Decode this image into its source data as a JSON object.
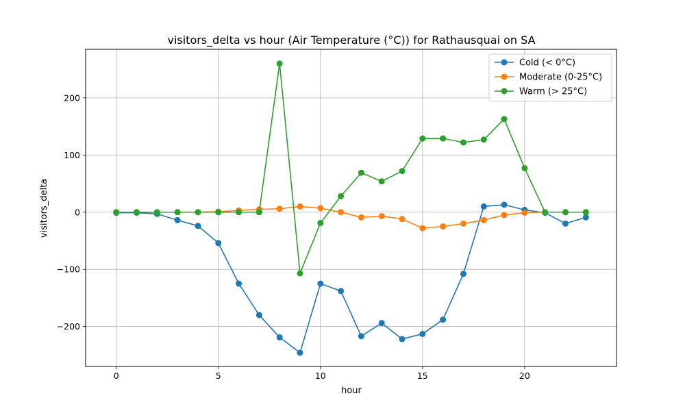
{
  "chart_data": {
    "type": "line",
    "title": "visitors_delta vs hour (Air Temperature (°C)) for Rathausquai on SA",
    "xlabel": "hour",
    "ylabel": "visitors_delta",
    "xlim": [
      -1.5,
      24.5
    ],
    "ylim": [
      -270,
      285
    ],
    "xticks": [
      0,
      5,
      10,
      15,
      20
    ],
    "xtick_labels": [
      "0",
      "5",
      "10",
      "15",
      "20"
    ],
    "yticks": [
      -200,
      -100,
      0,
      100,
      200
    ],
    "ytick_labels": [
      "−200",
      "−100",
      "0",
      "100",
      "200"
    ],
    "grid": true,
    "legend_position": "top-right",
    "x": [
      0,
      1,
      2,
      3,
      4,
      5,
      6,
      7,
      8,
      9,
      10,
      11,
      12,
      13,
      14,
      15,
      16,
      17,
      18,
      19,
      20,
      21,
      22,
      23
    ],
    "series": [
      {
        "name": "Cold (< 0°C)",
        "color": "#1f77b4",
        "values": [
          -1,
          -1,
          -3,
          -14,
          -24,
          -54,
          -125,
          -180,
          -219,
          -246,
          -125,
          -138,
          -217,
          -194,
          -222,
          -213,
          -188,
          -108,
          10,
          13,
          4,
          -1,
          -20,
          -9
        ]
      },
      {
        "name": "Moderate (0-25°C)",
        "color": "#ff7f0e",
        "values": [
          0,
          0,
          0,
          0,
          0,
          1,
          3,
          5,
          6,
          10,
          7,
          0,
          -9,
          -7,
          -12,
          -28,
          -25,
          -20,
          -14,
          -5,
          -1,
          0,
          0,
          0
        ]
      },
      {
        "name": "Warm (> 25°C)",
        "color": "#2ca02c",
        "values": [
          0,
          0,
          0,
          0,
          0,
          0,
          0,
          0,
          260,
          -107,
          -19,
          28,
          69,
          54,
          72,
          129,
          129,
          122,
          127,
          163,
          77,
          0,
          0,
          0
        ]
      }
    ]
  }
}
